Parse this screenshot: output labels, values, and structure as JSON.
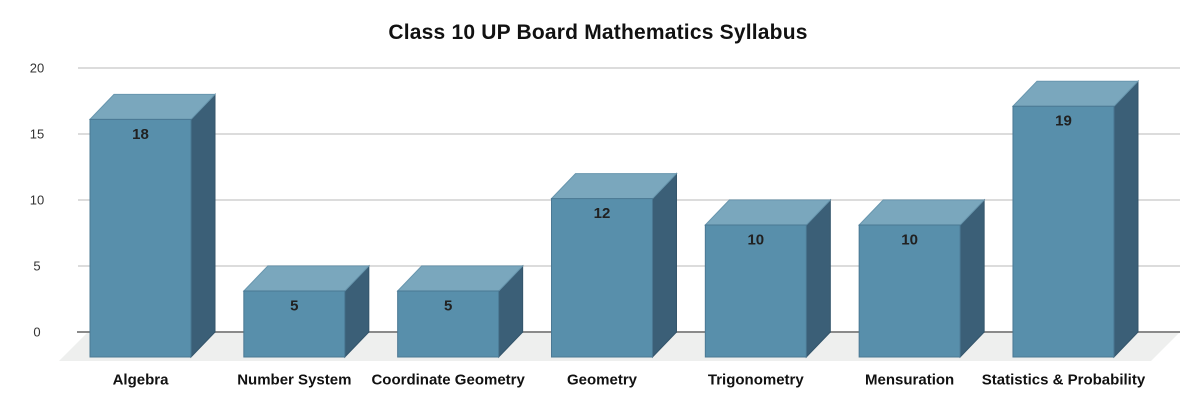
{
  "chart_data": {
    "type": "bar",
    "style": "3d-column",
    "title": "Class 10 UP Board Mathematics Syllabus",
    "categories": [
      "Algebra",
      "Number System",
      "Coordinate Geometry",
      "Geometry",
      "Trigonometry",
      "Mensuration",
      "Statistics & Probability"
    ],
    "values": [
      18,
      5,
      5,
      12,
      10,
      10,
      19
    ],
    "xlabel": "",
    "ylabel": "",
    "ylim": [
      0,
      20
    ],
    "y_ticks": [
      0,
      5,
      10,
      15,
      20
    ],
    "grid": true,
    "legend_position": "none",
    "value_labels_shown": true,
    "colors": {
      "bar_front": "#588fab",
      "bar_top": "#7aa7bd",
      "bar_side": "#3b5f77",
      "bar_front_edge": "#4a7893",
      "bar_top_edge": "#6896ae",
      "bar_side_edge": "#34556b",
      "floor": "#eeefee",
      "gridline": "#dcdcdc",
      "zero_line": "#8a8a8a",
      "title_text": "#111111",
      "axis_tick_text": "#333333",
      "value_label_text": "#212121",
      "category_label_text": "#111111",
      "background": "#ffffff"
    }
  }
}
